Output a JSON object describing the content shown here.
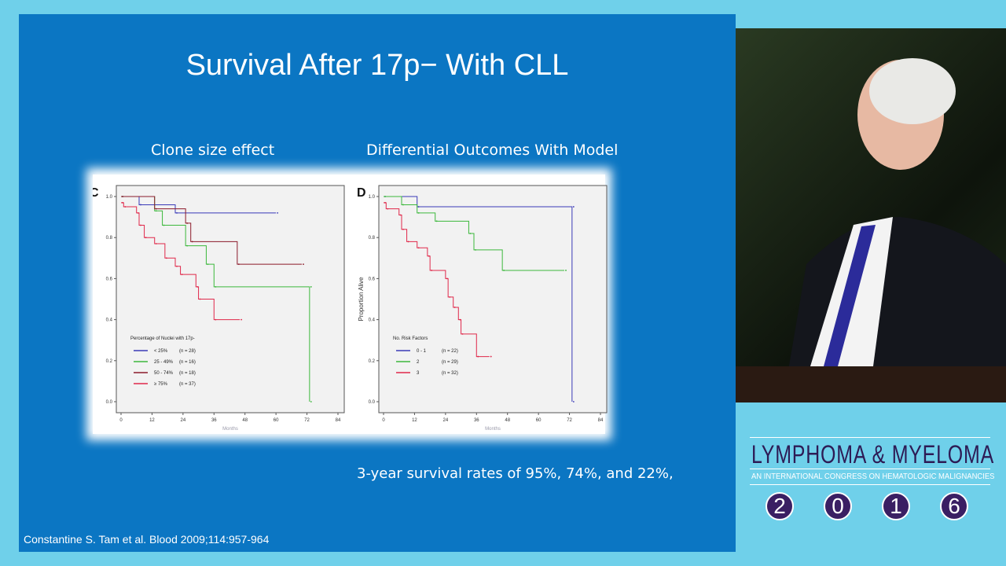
{
  "slide": {
    "title": "Survival After 17p−  With CLL",
    "left_subtitle": "Clone size effect",
    "right_subtitle": "Differential Outcomes With Model",
    "note": "3-year survival rates of 95%, 74%, and 22%,",
    "citation": "Constantine S. Tam et al. Blood 2009;114:957-964"
  },
  "logo": {
    "name": "LYMPHOMA & MYELOMA",
    "tagline": "AN INTERNATIONAL CONGRESS ON HEMATOLOGIC MALIGNANCIES",
    "year_digits": [
      "2",
      "0",
      "1",
      "6"
    ]
  },
  "chart_data": [
    {
      "type": "line",
      "panel": "C",
      "step": true,
      "xlabel": "Months",
      "ylabel": "",
      "xlim": [
        0,
        84
      ],
      "ylim": [
        0,
        1
      ],
      "xticks": [
        0,
        12,
        24,
        36,
        48,
        60,
        72,
        84
      ],
      "yticks": [
        "0.0",
        "0.2",
        "0.4",
        "0.6",
        "0.8",
        "1.0"
      ],
      "legend_title": "Percentage of Nuclei with 17p-",
      "legend_placement": "bottom-left",
      "series": [
        {
          "name": "< 25%",
          "n": "(n = 28)",
          "color": "#3a3ab8",
          "points": [
            [
              0,
              1
            ],
            [
              7,
              0.96
            ],
            [
              21,
              0.92
            ],
            [
              60,
              0.92
            ]
          ]
        },
        {
          "name": "25 - 49%",
          "n": "(n = 16)",
          "color": "#3cb83c",
          "points": [
            [
              0,
              1
            ],
            [
              13,
              0.93
            ],
            [
              16,
              0.86
            ],
            [
              25,
              0.76
            ],
            [
              33,
              0.67
            ],
            [
              36,
              0.56
            ],
            [
              73,
              0.56
            ],
            [
              73,
              0
            ]
          ]
        },
        {
          "name": "50 - 74%",
          "n": "(n = 18)",
          "color": "#8b1a2a",
          "points": [
            [
              0,
              1
            ],
            [
              13,
              0.94
            ],
            [
              25,
              0.87
            ],
            [
              27,
              0.78
            ],
            [
              45,
              0.67
            ],
            [
              70,
              0.67
            ]
          ]
        },
        {
          "name": "≥ 75%",
          "n": "(n = 37)",
          "color": "#e0284a",
          "points": [
            [
              0,
              0.97
            ],
            [
              1,
              0.95
            ],
            [
              6,
              0.92
            ],
            [
              7,
              0.86
            ],
            [
              9,
              0.8
            ],
            [
              13,
              0.77
            ],
            [
              17,
              0.7
            ],
            [
              21,
              0.66
            ],
            [
              23,
              0.62
            ],
            [
              29,
              0.56
            ],
            [
              30,
              0.5
            ],
            [
              36,
              0.4
            ],
            [
              46,
              0.4
            ]
          ]
        }
      ]
    },
    {
      "type": "line",
      "panel": "D",
      "step": true,
      "xlabel": "Months",
      "ylabel": "Proportion Alive",
      "xlim": [
        0,
        84
      ],
      "ylim": [
        0,
        1
      ],
      "xticks": [
        0,
        12,
        24,
        36,
        48,
        60,
        72,
        84
      ],
      "yticks": [
        "0.0",
        "0.2",
        "0.4",
        "0.6",
        "0.8",
        "1.0"
      ],
      "legend_title": "No. Risk Factors",
      "legend_placement": "bottom-left",
      "series": [
        {
          "name": "0 - 1",
          "n": "(n = 22)",
          "color": "#3a3ab8",
          "points": [
            [
              0,
              1
            ],
            [
              13,
              0.95
            ],
            [
              73,
              0.95
            ],
            [
              73,
              0
            ]
          ]
        },
        {
          "name": "2",
          "n": "(n = 29)",
          "color": "#3cb83c",
          "points": [
            [
              0,
              1
            ],
            [
              7,
              0.96
            ],
            [
              13,
              0.92
            ],
            [
              20,
              0.88
            ],
            [
              33,
              0.82
            ],
            [
              35,
              0.74
            ],
            [
              46,
              0.64
            ],
            [
              70,
              0.64
            ]
          ]
        },
        {
          "name": "3",
          "n": "(n = 32)",
          "color": "#e0284a",
          "points": [
            [
              0,
              0.97
            ],
            [
              1,
              0.94
            ],
            [
              6,
              0.91
            ],
            [
              7,
              0.84
            ],
            [
              9,
              0.78
            ],
            [
              13,
              0.75
            ],
            [
              17,
              0.71
            ],
            [
              18,
              0.64
            ],
            [
              24,
              0.6
            ],
            [
              25,
              0.51
            ],
            [
              27,
              0.46
            ],
            [
              29,
              0.4
            ],
            [
              30,
              0.33
            ],
            [
              36,
              0.22
            ],
            [
              41,
              0.22
            ]
          ]
        }
      ]
    }
  ]
}
